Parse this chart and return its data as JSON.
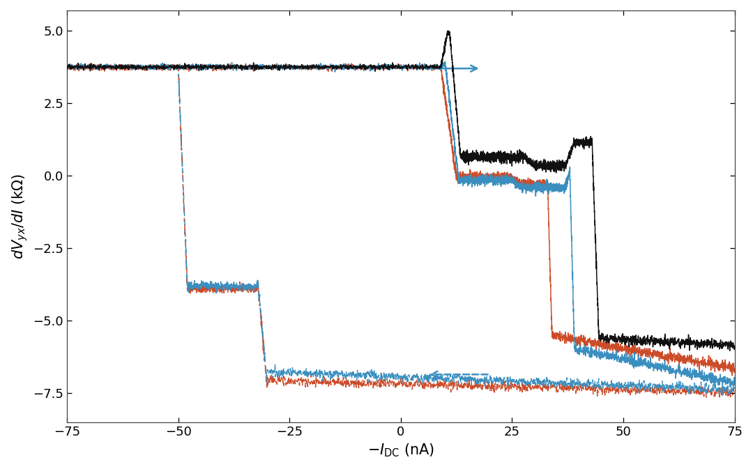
{
  "xlim": [
    -75,
    75
  ],
  "ylim": [
    -8.5,
    5.7
  ],
  "yticks": [
    -7.5,
    -5.0,
    -2.5,
    0.0,
    2.5,
    5.0
  ],
  "xticks": [
    -75,
    -50,
    -25,
    0,
    25,
    50,
    75
  ],
  "xlabel": "$-I_{\\mathrm{DC}}$ (nA)",
  "ylabel": "$dV_{yx}/dI$ (k$\\Omega$)",
  "background_color": "#ffffff",
  "colors": {
    "black": "#111111",
    "blue": "#3a8fbf",
    "red": "#cc4c2a"
  },
  "arrow_color": "#3a8fbf",
  "lw": 1.1
}
